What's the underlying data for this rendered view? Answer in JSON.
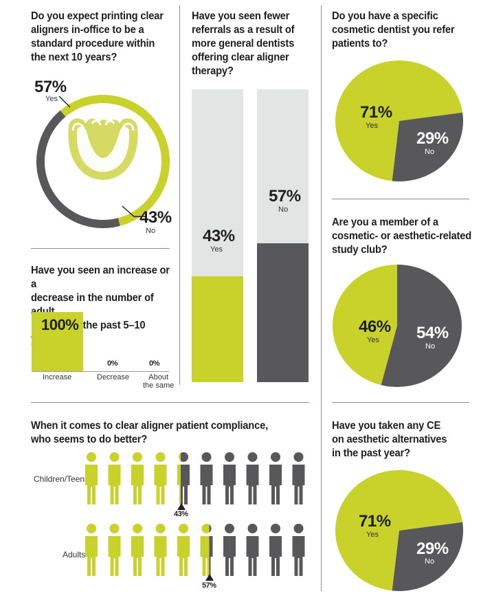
{
  "colors": {
    "yes": "#c8d22b",
    "no": "#58585a",
    "bar_bg": "#e2e5e3",
    "text": "#1f1f1f"
  },
  "q1": {
    "question": "Do you expect printing clear aligners in-office to be a standard procedure within the next 10 years?",
    "question_lines": [
      "Do you expect printing clear",
      "aligners in-office to be a",
      "standard procedure within",
      "the next 10 years?"
    ],
    "yes_pct": "57%",
    "yes_label": "Yes",
    "no_pct": "43%",
    "no_label": "No",
    "icon": "clear-aligner-icon"
  },
  "q2": {
    "question_lines": [
      "Have you seen an increase or a",
      "decrease in the number of adult",
      "patients in the past 5–10 years?"
    ],
    "bars": [
      {
        "label": "Increase",
        "value_text": "100%"
      },
      {
        "label": "Decrease",
        "value_text": "0%"
      },
      {
        "label": "About the same",
        "label_lines": [
          "About",
          "the same"
        ],
        "value_text": "0%"
      }
    ]
  },
  "q3": {
    "question_lines": [
      "Have you seen fewer",
      "referrals as a result of",
      "more general dentists",
      "offering clear aligner",
      "therapy?"
    ],
    "yes_pct": "43%",
    "yes_label": "Yes",
    "no_pct": "57%",
    "no_label": "No"
  },
  "q4": {
    "question_lines": [
      "Do you have a specific",
      "cosmetic dentist you refer",
      "patients to?"
    ],
    "yes_pct": "71%",
    "yes_label": "Yes",
    "no_pct": "29%",
    "no_label": "No"
  },
  "q5": {
    "question_lines": [
      "Are you a member of a",
      "cosmetic- or aesthetic-related",
      "study club?"
    ],
    "yes_pct": "46%",
    "yes_label": "Yes",
    "no_pct": "54%",
    "no_label": "No"
  },
  "q6": {
    "question_lines": [
      "When it comes to clear aligner patient compliance,",
      "who seems to do better?"
    ],
    "rows": [
      {
        "label": "Children/Teens",
        "marker": "43%"
      },
      {
        "label": "Adults",
        "marker": "57%"
      }
    ]
  },
  "q7": {
    "question_lines": [
      "Have you taken any CE",
      "on aesthetic alternatives",
      "in the past year?"
    ],
    "yes_pct": "71%",
    "yes_label": "Yes",
    "no_pct": "29%",
    "no_label": "No"
  },
  "chart_data": [
    {
      "type": "pie",
      "title": "Do you expect printing clear aligners in-office to be a standard procedure within the next 10 years?",
      "categories": [
        "Yes",
        "No"
      ],
      "values": [
        57,
        43
      ]
    },
    {
      "type": "bar",
      "title": "Have you seen an increase or a decrease in the number of adult patients in the past 5–10 years?",
      "categories": [
        "Increase",
        "Decrease",
        "About the same"
      ],
      "values": [
        100,
        0,
        0
      ],
      "ylim": [
        0,
        100
      ]
    },
    {
      "type": "bar",
      "title": "Have you seen fewer referrals as a result of more general dentists offering clear aligner therapy?",
      "categories": [
        "Yes",
        "No"
      ],
      "values": [
        43,
        57
      ],
      "ylim": [
        0,
        100
      ]
    },
    {
      "type": "pie",
      "title": "Do you have a specific cosmetic dentist you refer patients to?",
      "categories": [
        "Yes",
        "No"
      ],
      "values": [
        71,
        29
      ]
    },
    {
      "type": "pie",
      "title": "Are you a member of a cosmetic- or aesthetic-related study club?",
      "categories": [
        "Yes",
        "No"
      ],
      "values": [
        46,
        54
      ]
    },
    {
      "type": "bar",
      "title": "When it comes to clear aligner patient compliance, who seems to do better?",
      "categories": [
        "Children/Teens",
        "Adults"
      ],
      "values": [
        43,
        57
      ],
      "ylim": [
        0,
        100
      ]
    },
    {
      "type": "pie",
      "title": "Have you taken any CE on aesthetic alternatives in the past year?",
      "categories": [
        "Yes",
        "No"
      ],
      "values": [
        71,
        29
      ]
    }
  ]
}
